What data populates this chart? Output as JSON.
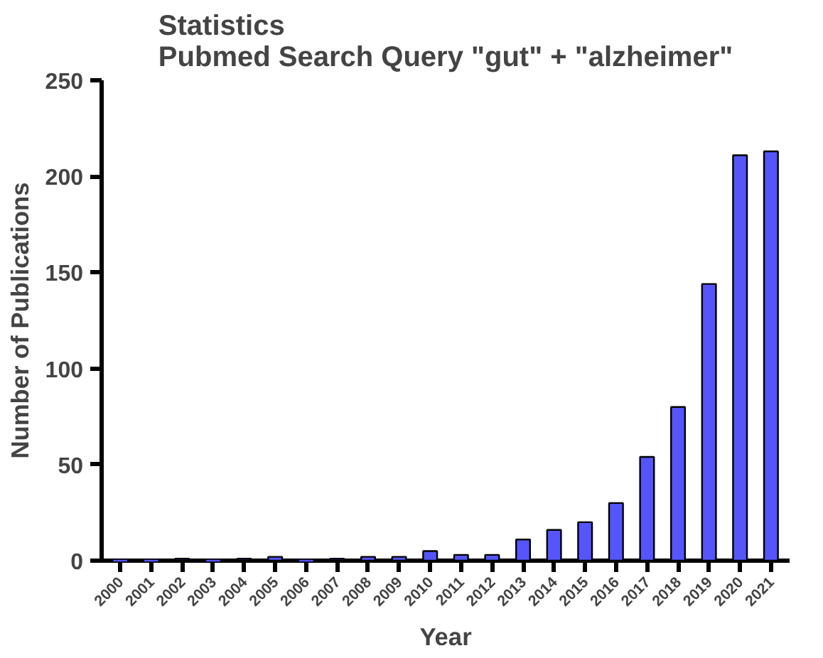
{
  "chart_data": {
    "type": "bar",
    "title": "Statistics\nPubmed Search Query \"gut\" + \"alzheimer\"",
    "xlabel": "Year",
    "ylabel": "Number of Publications",
    "categories": [
      "2000",
      "2001",
      "2002",
      "2003",
      "2004",
      "2005",
      "2006",
      "2007",
      "2008",
      "2009",
      "2010",
      "2011",
      "2012",
      "2013",
      "2014",
      "2015",
      "2016",
      "2017",
      "2018",
      "2019",
      "2020",
      "2021"
    ],
    "values": [
      0,
      0,
      1,
      0,
      1,
      2,
      0,
      1,
      2,
      2,
      5,
      3,
      3,
      11,
      16,
      20,
      30,
      54,
      80,
      144,
      211,
      213
    ],
    "color": "#5555fb",
    "ylim": [
      0,
      250
    ],
    "yticks": [
      0,
      50,
      100,
      150,
      200,
      250
    ],
    "grid": false
  }
}
